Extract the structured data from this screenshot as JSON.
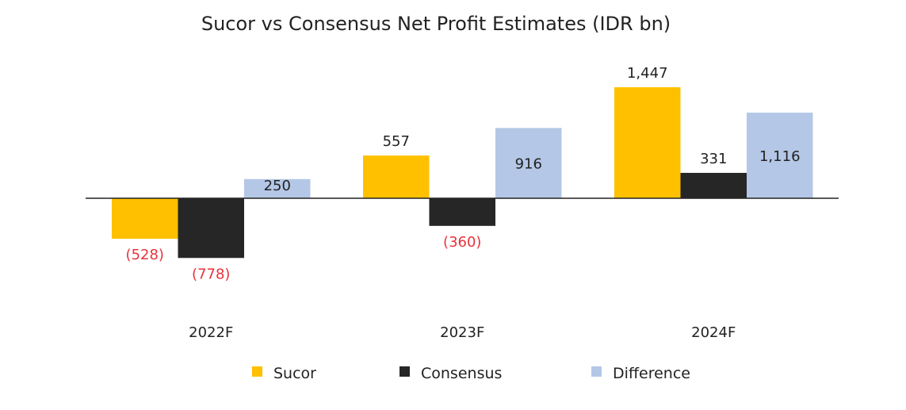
{
  "chart_data": {
    "type": "bar",
    "title": "Sucor vs Consensus Net Profit Estimates (IDR bn)",
    "xlabel": "",
    "ylabel": "",
    "categories": [
      "2022F",
      "2023F",
      "2024F"
    ],
    "series": [
      {
        "name": "Sucor",
        "color": "#FFC000",
        "values": [
          -528,
          557,
          1447
        ],
        "labels": [
          "(528)",
          "557",
          "1,447"
        ]
      },
      {
        "name": "Consensus",
        "color": "#262626",
        "values": [
          -778,
          -360,
          331
        ],
        "labels": [
          "(778)",
          "(360)",
          "331"
        ]
      },
      {
        "name": "Difference",
        "color": "#B4C7E7",
        "values": [
          250,
          916,
          1116
        ],
        "labels": [
          "250",
          "916",
          "1,116"
        ]
      }
    ],
    "ylim": [
      -1300,
      1450
    ],
    "grid": false,
    "legend": "bottom",
    "negative_label_color": "#E8323C",
    "positive_label_color": "#222222"
  }
}
